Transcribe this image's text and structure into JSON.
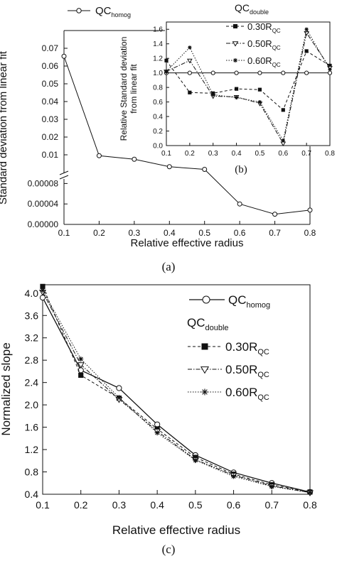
{
  "chart_data": [
    {
      "panel_label": "(a)",
      "type": "line",
      "broken_y_axis": true,
      "xlabel": "Relative effective radius",
      "ylabel": "Standard deviation from linear fit",
      "x": [
        0.1,
        0.2,
        0.3,
        0.4,
        0.5,
        0.6,
        0.7,
        0.8
      ],
      "x_ticks": [
        "0.1",
        "0.2",
        "0.3",
        "0.4",
        "0.5",
        "0.6",
        "0.7",
        "0.8"
      ],
      "y_ticks_upper": [
        "0.01",
        "0.02",
        "0.03",
        "0.04",
        "0.05",
        "0.06",
        "0.07"
      ],
      "y_ticks_lower": [
        "0.00000",
        "0.00004",
        "0.00008"
      ],
      "series": [
        {
          "name": "QC",
          "name_sub": "homog",
          "marker": "open-circle",
          "values": [
            0.0655,
            0.0095,
            0.0075,
            0.0033,
            0.0018,
            4e-05,
            2e-05,
            2.8e-05
          ]
        }
      ],
      "legend_position": "top-left",
      "legend_symbol": "—o—"
    },
    {
      "panel_label": "(b)",
      "type": "line",
      "inset": true,
      "ylabel": "Relative Standard deviation\nfrom linear fit",
      "ylabel_line1": "Relative Standard deviation",
      "ylabel_line2": "from linear fit",
      "x": [
        0.1,
        0.2,
        0.3,
        0.4,
        0.5,
        0.6,
        0.7,
        0.8
      ],
      "x_ticks": [
        "0.1",
        "0.2",
        "0.3",
        "0.4",
        "0.5",
        "0.6",
        "0.7",
        "0.8"
      ],
      "y_ticks": [
        "0.0",
        "0.2",
        "0.4",
        "0.6",
        "0.8",
        "1.0",
        "1.2",
        "1.4",
        "1.6"
      ],
      "ylim": [
        0.0,
        1.7
      ],
      "legend_title": "QC",
      "legend_title_sub": "double",
      "series": [
        {
          "name": "QC",
          "name_sub": "homog",
          "marker": "open-circle",
          "values": [
            1.0,
            1.0,
            1.0,
            1.0,
            1.0,
            1.0,
            1.0,
            1.0
          ]
        },
        {
          "name": "0.30R",
          "name_sub": "QC",
          "marker": "filled-square",
          "values": [
            1.17,
            0.73,
            0.72,
            0.78,
            0.77,
            0.49,
            1.3,
            1.1
          ]
        },
        {
          "name": "0.50R",
          "name_sub": "QC",
          "marker": "open-triangle-down",
          "values": [
            1.02,
            1.17,
            0.68,
            0.67,
            0.58,
            0.03,
            1.55,
            1.07
          ]
        },
        {
          "name": "0.60R",
          "name_sub": "QC",
          "marker": "asterisk",
          "values": [
            1.02,
            1.35,
            0.7,
            0.66,
            0.6,
            0.07,
            1.6,
            1.05
          ]
        }
      ]
    },
    {
      "panel_label": "(c)",
      "type": "line",
      "xlabel": "Relative effective radius",
      "ylabel": "Normalized slope",
      "x": [
        0.1,
        0.2,
        0.3,
        0.4,
        0.5,
        0.6,
        0.7,
        0.8
      ],
      "x_ticks": [
        "0.1",
        "0.2",
        "0.3",
        "0.4",
        "0.5",
        "0.6",
        "0.7",
        "0.8"
      ],
      "y_ticks": [
        "0.4",
        "0.8",
        "1.2",
        "1.6",
        "2.0",
        "2.4",
        "2.8",
        "3.2",
        "3.6",
        "4.0"
      ],
      "ylim": [
        0.4,
        4.15
      ],
      "legend_title": "QC",
      "legend_title_sub": "double",
      "series": [
        {
          "name": "QC",
          "name_sub": "homog",
          "marker": "open-circle",
          "values": [
            3.92,
            2.62,
            2.3,
            1.65,
            1.1,
            0.79,
            0.6,
            0.44
          ]
        },
        {
          "name": "0.30R",
          "name_sub": "QC",
          "marker": "filled-square",
          "values": [
            4.12,
            2.53,
            2.12,
            1.57,
            1.06,
            0.76,
            0.57,
            0.44
          ]
        },
        {
          "name": "0.50R",
          "name_sub": "QC",
          "marker": "open-triangle-down",
          "values": [
            4.02,
            2.72,
            2.1,
            1.53,
            1.02,
            0.74,
            0.55,
            0.43
          ]
        },
        {
          "name": "0.60R",
          "name_sub": "QC",
          "marker": "asterisk",
          "values": [
            4.05,
            2.82,
            2.13,
            1.5,
            1.01,
            0.72,
            0.54,
            0.43
          ]
        }
      ]
    }
  ]
}
